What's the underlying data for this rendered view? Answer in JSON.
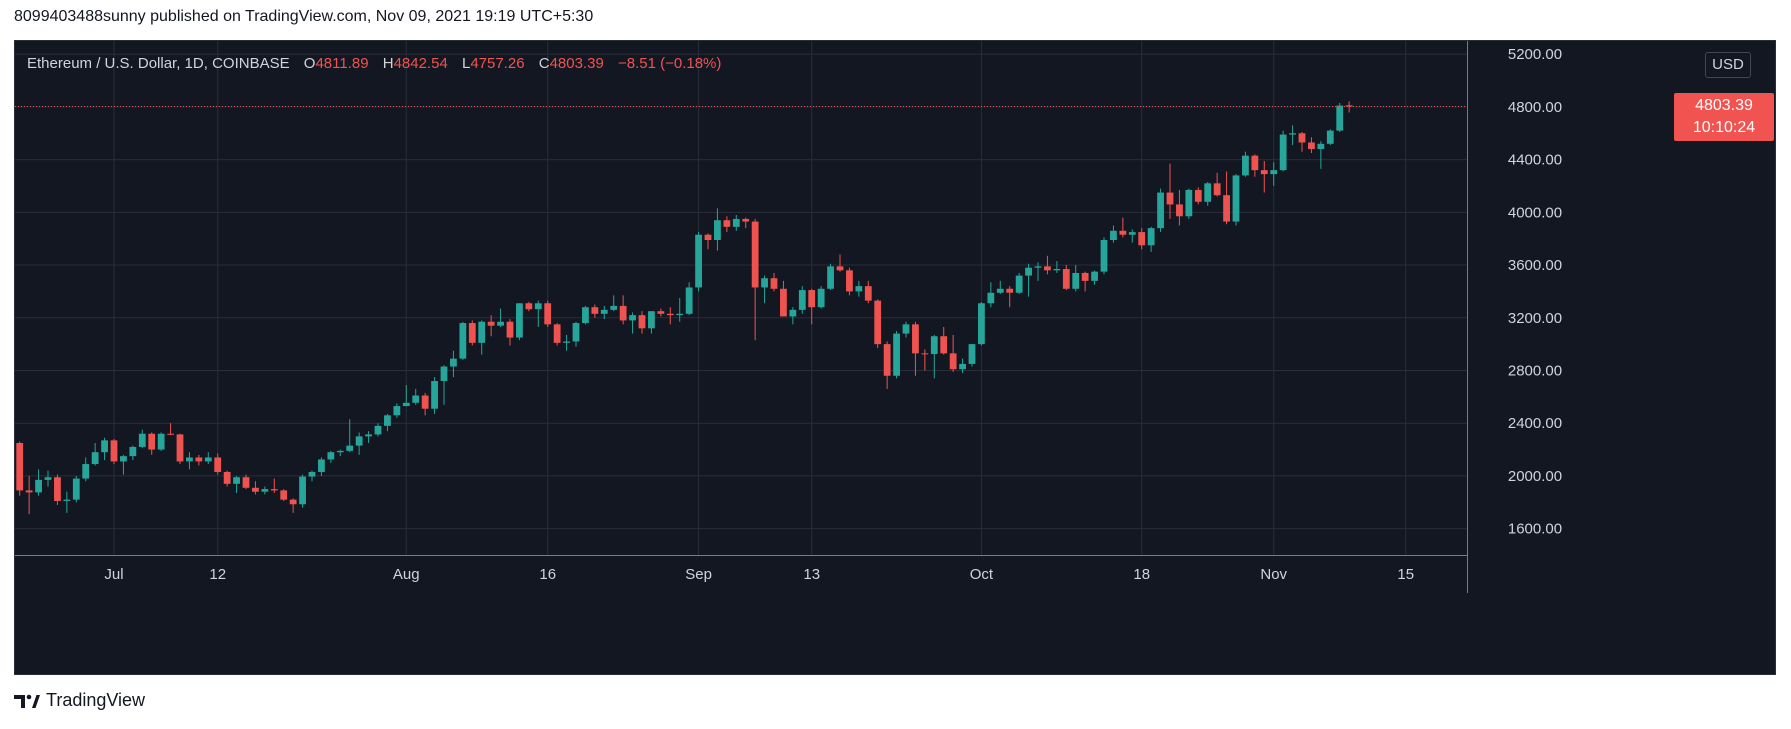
{
  "header": {
    "published_text": "8099403488sunny published on TradingView.com, Nov 09, 2021 19:19 UTC+5:30"
  },
  "legend": {
    "symbol": "Ethereum / U.S. Dollar, 1D, COINBASE",
    "o_label": "O",
    "o_value": "4811.89",
    "h_label": "H",
    "h_value": "4842.54",
    "l_label": "L",
    "l_value": "4757.26",
    "c_label": "C",
    "c_value": "4803.39",
    "change": "−8.51 (−0.18%)"
  },
  "price_axis": {
    "currency": "USD",
    "last_price": "4803.39",
    "countdown": "10:10:24"
  },
  "footer": {
    "brand": "TradingView"
  },
  "colors": {
    "background": "#131722",
    "grid": "#2a2e39",
    "up": "#26a69a",
    "down": "#ef5350",
    "axis_text": "#d1d4dc"
  },
  "chart_data": {
    "type": "candlestick",
    "title": "Ethereum / U.S. Dollar, 1D, COINBASE",
    "ylim": [
      1400,
      5300
    ],
    "y_ticks": [
      "1600.00",
      "2000.00",
      "2400.00",
      "2800.00",
      "3200.00",
      "3600.00",
      "4000.00",
      "4400.00",
      "4800.00",
      "5200.00"
    ],
    "x_tick_labels": [
      "Jul",
      "12",
      "Aug",
      "16",
      "Sep",
      "13",
      "Oct",
      "18",
      "Nov",
      "15"
    ],
    "x_tick_dates": [
      "2021-07-01",
      "2021-07-12",
      "2021-08-01",
      "2021-08-16",
      "2021-09-01",
      "2021-09-13",
      "2021-10-01",
      "2021-10-18",
      "2021-11-01",
      "2021-11-15"
    ],
    "grid": true,
    "date_range": [
      "2021-06-21",
      "2021-11-22"
    ],
    "candles": [
      [
        "2021-06-21",
        2250,
        2260,
        1850,
        1890
      ],
      [
        "2021-06-22",
        1890,
        2000,
        1710,
        1875
      ],
      [
        "2021-06-23",
        1875,
        2050,
        1850,
        1970
      ],
      [
        "2021-06-24",
        1970,
        2040,
        1920,
        1990
      ],
      [
        "2021-06-25",
        1990,
        2010,
        1780,
        1810
      ],
      [
        "2021-06-26",
        1810,
        1880,
        1720,
        1820
      ],
      [
        "2021-06-27",
        1820,
        2000,
        1800,
        1980
      ],
      [
        "2021-06-28",
        1980,
        2140,
        1960,
        2090
      ],
      [
        "2021-06-29",
        2090,
        2250,
        2080,
        2180
      ],
      [
        "2021-06-30",
        2180,
        2290,
        2120,
        2270
      ],
      [
        "2021-07-01",
        2270,
        2280,
        2090,
        2110
      ],
      [
        "2021-07-02",
        2110,
        2160,
        2010,
        2150
      ],
      [
        "2021-07-03",
        2150,
        2230,
        2120,
        2220
      ],
      [
        "2021-07-04",
        2220,
        2350,
        2210,
        2320
      ],
      [
        "2021-07-05",
        2320,
        2330,
        2160,
        2200
      ],
      [
        "2021-07-06",
        2200,
        2330,
        2190,
        2320
      ],
      [
        "2021-07-07",
        2320,
        2400,
        2310,
        2315
      ],
      [
        "2021-07-08",
        2315,
        2320,
        2090,
        2110
      ],
      [
        "2021-07-09",
        2110,
        2180,
        2050,
        2140
      ],
      [
        "2021-07-10",
        2140,
        2160,
        2080,
        2110
      ],
      [
        "2021-07-11",
        2110,
        2180,
        2090,
        2140
      ],
      [
        "2021-07-12",
        2140,
        2170,
        2010,
        2030
      ],
      [
        "2021-07-13",
        2030,
        2040,
        1920,
        1940
      ],
      [
        "2021-07-14",
        1940,
        2000,
        1870,
        1990
      ],
      [
        "2021-07-15",
        1990,
        2010,
        1900,
        1910
      ],
      [
        "2021-07-16",
        1910,
        1960,
        1860,
        1880
      ],
      [
        "2021-07-17",
        1880,
        1920,
        1860,
        1900
      ],
      [
        "2021-07-18",
        1900,
        1980,
        1870,
        1890
      ],
      [
        "2021-07-19",
        1890,
        1900,
        1810,
        1820
      ],
      [
        "2021-07-20",
        1820,
        1830,
        1720,
        1785
      ],
      [
        "2021-07-21",
        1785,
        2010,
        1760,
        1995
      ],
      [
        "2021-07-22",
        1995,
        2040,
        1960,
        2030
      ],
      [
        "2021-07-23",
        2030,
        2140,
        2000,
        2125
      ],
      [
        "2021-07-24",
        2125,
        2190,
        2100,
        2180
      ],
      [
        "2021-07-25",
        2180,
        2200,
        2150,
        2190
      ],
      [
        "2021-07-26",
        2190,
        2430,
        2180,
        2230
      ],
      [
        "2021-07-27",
        2230,
        2330,
        2160,
        2300
      ],
      [
        "2021-07-28",
        2300,
        2340,
        2250,
        2315
      ],
      [
        "2021-07-29",
        2315,
        2400,
        2300,
        2380
      ],
      [
        "2021-07-30",
        2380,
        2470,
        2340,
        2460
      ],
      [
        "2021-07-31",
        2460,
        2550,
        2440,
        2530
      ],
      [
        "2021-08-01",
        2530,
        2690,
        2530,
        2555
      ],
      [
        "2021-08-02",
        2555,
        2660,
        2540,
        2610
      ],
      [
        "2021-08-03",
        2610,
        2630,
        2460,
        2510
      ],
      [
        "2021-08-04",
        2510,
        2750,
        2470,
        2720
      ],
      [
        "2021-08-05",
        2720,
        2840,
        2540,
        2830
      ],
      [
        "2021-08-06",
        2830,
        2950,
        2750,
        2890
      ],
      [
        "2021-08-07",
        2890,
        3170,
        2880,
        3160
      ],
      [
        "2021-08-08",
        3160,
        3180,
        2990,
        3010
      ],
      [
        "2021-08-09",
        3010,
        3180,
        2920,
        3170
      ],
      [
        "2021-08-10",
        3170,
        3220,
        3060,
        3140
      ],
      [
        "2021-08-11",
        3140,
        3270,
        3130,
        3170
      ],
      [
        "2021-08-12",
        3170,
        3190,
        2990,
        3050
      ],
      [
        "2021-08-13",
        3050,
        3310,
        3030,
        3310
      ],
      [
        "2021-08-14",
        3310,
        3320,
        3250,
        3265
      ],
      [
        "2021-08-15",
        3265,
        3330,
        3130,
        3310
      ],
      [
        "2021-08-16",
        3310,
        3330,
        3130,
        3150
      ],
      [
        "2021-08-17",
        3150,
        3160,
        2990,
        3010
      ],
      [
        "2021-08-18",
        3010,
        3070,
        2950,
        3020
      ],
      [
        "2021-08-19",
        3020,
        3170,
        2980,
        3160
      ],
      [
        "2021-08-20",
        3160,
        3290,
        3150,
        3280
      ],
      [
        "2021-08-21",
        3280,
        3300,
        3200,
        3230
      ],
      [
        "2021-08-22",
        3230,
        3290,
        3190,
        3260
      ],
      [
        "2021-08-23",
        3260,
        3370,
        3250,
        3290
      ],
      [
        "2021-08-24",
        3290,
        3370,
        3150,
        3180
      ],
      [
        "2021-08-25",
        3180,
        3240,
        3080,
        3220
      ],
      [
        "2021-08-26",
        3220,
        3250,
        3080,
        3120
      ],
      [
        "2021-08-27",
        3120,
        3250,
        3080,
        3250
      ],
      [
        "2021-08-28",
        3250,
        3270,
        3210,
        3230
      ],
      [
        "2021-08-29",
        3230,
        3280,
        3150,
        3220
      ],
      [
        "2021-08-30",
        3220,
        3350,
        3170,
        3230
      ],
      [
        "2021-08-31",
        3230,
        3470,
        3220,
        3430
      ],
      [
        "2021-09-01",
        3430,
        3850,
        3400,
        3830
      ],
      [
        "2021-09-02",
        3830,
        3840,
        3720,
        3790
      ],
      [
        "2021-09-03",
        3790,
        4030,
        3710,
        3940
      ],
      [
        "2021-09-04",
        3940,
        3970,
        3850,
        3890
      ],
      [
        "2021-09-05",
        3890,
        3980,
        3860,
        3950
      ],
      [
        "2021-09-06",
        3950,
        3960,
        3880,
        3930
      ],
      [
        "2021-09-07",
        3930,
        3950,
        3030,
        3430
      ],
      [
        "2021-09-08",
        3430,
        3520,
        3310,
        3500
      ],
      [
        "2021-09-09",
        3500,
        3540,
        3400,
        3420
      ],
      [
        "2021-09-10",
        3420,
        3480,
        3210,
        3210
      ],
      [
        "2021-09-11",
        3210,
        3280,
        3150,
        3260
      ],
      [
        "2021-09-12",
        3260,
        3440,
        3230,
        3410
      ],
      [
        "2021-09-13",
        3410,
        3420,
        3150,
        3280
      ],
      [
        "2021-09-14",
        3280,
        3440,
        3270,
        3420
      ],
      [
        "2021-09-15",
        3420,
        3610,
        3410,
        3590
      ],
      [
        "2021-09-16",
        3590,
        3680,
        3550,
        3560
      ],
      [
        "2021-09-17",
        3560,
        3580,
        3370,
        3400
      ],
      [
        "2021-09-18",
        3400,
        3480,
        3360,
        3440
      ],
      [
        "2021-09-19",
        3440,
        3480,
        3310,
        3330
      ],
      [
        "2021-09-20",
        3330,
        3340,
        2970,
        3000
      ],
      [
        "2021-09-21",
        3000,
        3020,
        2660,
        2760
      ],
      [
        "2021-09-22",
        2760,
        3100,
        2740,
        3080
      ],
      [
        "2021-09-23",
        3080,
        3170,
        3050,
        3150
      ],
      [
        "2021-09-24",
        3150,
        3170,
        2760,
        2930
      ],
      [
        "2021-09-25",
        2930,
        2960,
        2800,
        2925
      ],
      [
        "2021-09-26",
        2925,
        3070,
        2740,
        3060
      ],
      [
        "2021-09-27",
        3060,
        3130,
        2920,
        2930
      ],
      [
        "2021-09-28",
        2930,
        3070,
        2790,
        2810
      ],
      [
        "2021-09-29",
        2810,
        2890,
        2780,
        2850
      ],
      [
        "2021-09-30",
        2850,
        3000,
        2830,
        3000
      ],
      [
        "2021-10-01",
        3000,
        3320,
        2990,
        3310
      ],
      [
        "2021-10-02",
        3310,
        3470,
        3280,
        3390
      ],
      [
        "2021-10-03",
        3390,
        3480,
        3380,
        3420
      ],
      [
        "2021-10-04",
        3420,
        3440,
        3280,
        3390
      ],
      [
        "2021-10-05",
        3390,
        3540,
        3380,
        3520
      ],
      [
        "2021-10-06",
        3520,
        3610,
        3360,
        3580
      ],
      [
        "2021-10-07",
        3580,
        3620,
        3480,
        3590
      ],
      [
        "2021-10-08",
        3590,
        3670,
        3530,
        3560
      ],
      [
        "2021-10-09",
        3560,
        3630,
        3540,
        3570
      ],
      [
        "2021-10-10",
        3570,
        3600,
        3410,
        3420
      ],
      [
        "2021-10-11",
        3420,
        3600,
        3400,
        3540
      ],
      [
        "2021-10-12",
        3540,
        3550,
        3400,
        3480
      ],
      [
        "2021-10-13",
        3480,
        3560,
        3450,
        3550
      ],
      [
        "2021-10-14",
        3550,
        3810,
        3530,
        3790
      ],
      [
        "2021-10-15",
        3790,
        3900,
        3770,
        3860
      ],
      [
        "2021-10-16",
        3860,
        3960,
        3810,
        3830
      ],
      [
        "2021-10-17",
        3830,
        3870,
        3770,
        3850
      ],
      [
        "2021-10-18",
        3850,
        3880,
        3720,
        3750
      ],
      [
        "2021-10-19",
        3750,
        3890,
        3700,
        3880
      ],
      [
        "2021-10-20",
        3880,
        4180,
        3850,
        4150
      ],
      [
        "2021-10-21",
        4150,
        4370,
        3950,
        4060
      ],
      [
        "2021-10-22",
        4060,
        4170,
        3900,
        3970
      ],
      [
        "2021-10-23",
        3970,
        4180,
        3950,
        4170
      ],
      [
        "2021-10-24",
        4170,
        4190,
        4060,
        4080
      ],
      [
        "2021-10-25",
        4080,
        4230,
        4050,
        4220
      ],
      [
        "2021-10-26",
        4220,
        4300,
        4120,
        4130
      ],
      [
        "2021-10-27",
        4130,
        4310,
        3910,
        3930
      ],
      [
        "2021-10-28",
        3930,
        4290,
        3900,
        4280
      ],
      [
        "2021-10-29",
        4280,
        4460,
        4270,
        4430
      ],
      [
        "2021-10-30",
        4430,
        4440,
        4270,
        4320
      ],
      [
        "2021-10-31",
        4320,
        4390,
        4150,
        4290
      ],
      [
        "2021-11-01",
        4290,
        4380,
        4200,
        4320
      ],
      [
        "2021-11-02",
        4320,
        4620,
        4310,
        4590
      ],
      [
        "2021-11-03",
        4590,
        4660,
        4510,
        4600
      ],
      [
        "2021-11-04",
        4600,
        4610,
        4460,
        4530
      ],
      [
        "2021-11-05",
        4530,
        4570,
        4450,
        4480
      ],
      [
        "2021-11-06",
        4480,
        4540,
        4330,
        4520
      ],
      [
        "2021-11-07",
        4520,
        4630,
        4510,
        4620
      ],
      [
        "2021-11-08",
        4620,
        4830,
        4610,
        4810
      ],
      [
        "2021-11-09",
        4811.89,
        4842.54,
        4757.26,
        4803.39
      ]
    ]
  }
}
